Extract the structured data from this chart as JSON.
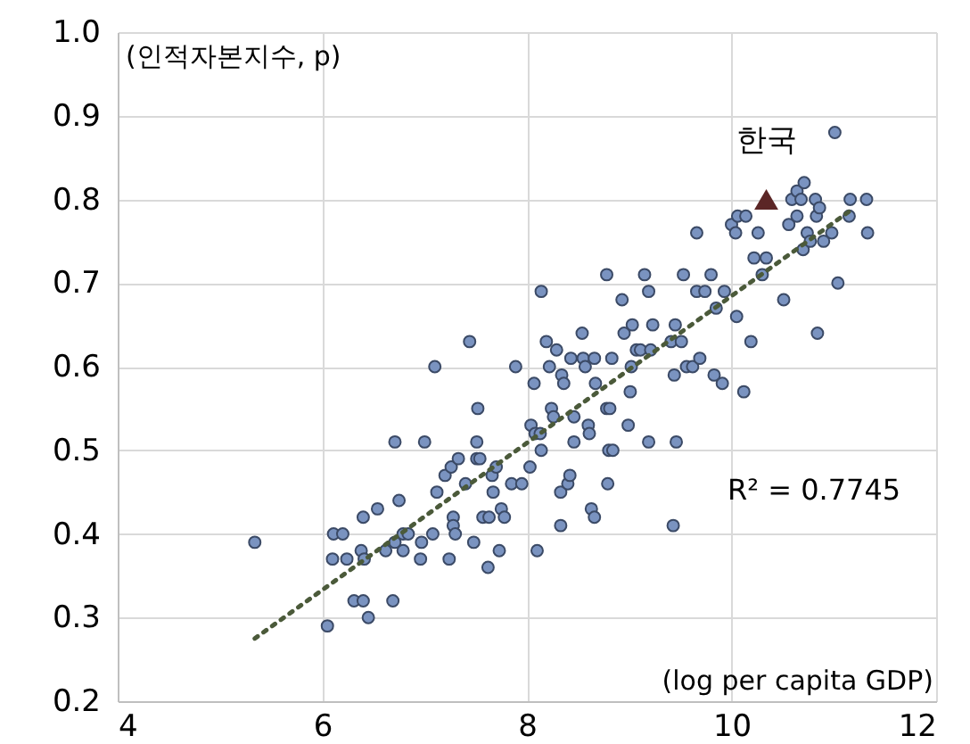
{
  "chart_data": {
    "type": "scatter",
    "xlabel": "(log per capita GDP)",
    "ylabel": "(인적자본지수, p)",
    "xlim": [
      4,
      12
    ],
    "xticks": [
      4,
      6,
      8,
      10,
      12
    ],
    "ylim": [
      0.2,
      1.0
    ],
    "yticks": [
      0.2,
      0.3,
      0.4,
      0.5,
      0.6,
      0.7,
      0.8,
      0.9,
      {
        "value": 1,
        "label": "1.0"
      }
    ],
    "grid": true,
    "annotations": [
      "R² = 0.7745"
    ],
    "series": [
      {
        "marker": "circle",
        "color": "#7a93c0",
        "x": [
          5.34,
          6.05,
          6.1,
          6.11,
          6.2,
          6.24,
          6.31,
          6.4,
          6.45,
          6.38,
          6.41,
          6.4,
          6.54,
          6.69,
          6.62,
          6.71,
          6.75,
          6.71,
          6.79,
          6.84,
          6.79,
          6.96,
          6.97,
          7.0,
          7.08,
          7.1,
          7.12,
          7.2,
          7.26,
          7.24,
          7.28,
          7.28,
          7.3,
          7.33,
          7.4,
          7.44,
          7.48,
          7.51,
          7.51,
          7.52,
          7.54,
          7.57,
          7.63,
          7.62,
          7.66,
          7.67,
          7.7,
          7.73,
          7.75,
          7.78,
          7.85,
          7.95,
          7.89,
          8.03,
          8.04,
          8.07,
          8.08,
          8.13,
          8.14,
          8.1,
          8.14,
          8.19,
          8.22,
          8.24,
          8.26,
          8.29,
          8.33,
          8.33,
          8.34,
          8.36,
          8.4,
          8.42,
          8.43,
          8.46,
          8.46,
          8.54,
          8.55,
          8.57,
          8.6,
          8.61,
          8.63,
          8.66,
          8.66,
          8.67,
          8.78,
          8.78,
          8.81,
          8.8,
          8.84,
          8.79,
          8.83,
          8.93,
          8.95,
          8.99,
          9.01,
          9.03,
          9.02,
          9.07,
          9.11,
          9.15,
          9.19,
          9.19,
          9.23,
          9.21,
          9.43,
          9.46,
          9.41,
          9.45,
          9.51,
          9.53,
          9.44,
          9.56,
          9.62,
          9.69,
          9.66,
          9.66,
          9.74,
          9.8,
          9.85,
          9.83,
          9.91,
          9.93,
          10.0,
          10.06,
          10.04,
          10.05,
          10.12,
          10.14,
          10.19,
          10.22,
          10.26,
          10.3,
          10.34,
          10.51,
          10.56,
          10.59,
          10.64,
          10.68,
          10.71,
          10.64,
          10.74,
          10.7,
          10.77,
          10.82,
          10.83,
          10.86,
          10.84,
          10.9,
          10.98,
          11.01,
          11.04,
          11.16,
          11.15,
          11.32,
          11.33
        ],
        "values": [
          0.39,
          0.29,
          0.37,
          0.4,
          0.4,
          0.37,
          0.32,
          0.32,
          0.3,
          0.38,
          0.37,
          0.42,
          0.43,
          0.32,
          0.38,
          0.39,
          0.44,
          0.51,
          0.4,
          0.4,
          0.38,
          0.37,
          0.39,
          0.51,
          0.4,
          0.6,
          0.45,
          0.47,
          0.48,
          0.37,
          0.42,
          0.41,
          0.4,
          0.49,
          0.46,
          0.63,
          0.39,
          0.49,
          0.51,
          0.55,
          0.49,
          0.42,
          0.42,
          0.36,
          0.47,
          0.45,
          0.48,
          0.38,
          0.43,
          0.42,
          0.46,
          0.46,
          0.6,
          0.48,
          0.53,
          0.58,
          0.52,
          0.52,
          0.5,
          0.38,
          0.69,
          0.63,
          0.6,
          0.55,
          0.54,
          0.62,
          0.45,
          0.41,
          0.59,
          0.58,
          0.46,
          0.47,
          0.61,
          0.51,
          0.54,
          0.64,
          0.61,
          0.6,
          0.53,
          0.52,
          0.43,
          0.42,
          0.61,
          0.58,
          0.71,
          0.55,
          0.55,
          0.5,
          0.5,
          0.46,
          0.61,
          0.68,
          0.64,
          0.53,
          0.57,
          0.65,
          0.6,
          0.62,
          0.62,
          0.71,
          0.69,
          0.51,
          0.65,
          0.62,
          0.41,
          0.51,
          0.63,
          0.65,
          0.63,
          0.71,
          0.59,
          0.6,
          0.6,
          0.61,
          0.76,
          0.69,
          0.69,
          0.71,
          0.67,
          0.59,
          0.58,
          0.69,
          0.77,
          0.78,
          0.76,
          0.66,
          0.57,
          0.78,
          0.63,
          0.73,
          0.76,
          0.71,
          0.73,
          0.68,
          0.77,
          0.8,
          0.81,
          0.8,
          0.82,
          0.78,
          0.76,
          0.74,
          0.75,
          0.8,
          0.78,
          0.79,
          0.64,
          0.75,
          0.76,
          0.88,
          0.7,
          0.8,
          0.78,
          0.8,
          0.76
        ]
      },
      {
        "type": "line",
        "marker": "none",
        "line_style": "dotted",
        "color": "#4b5a3a",
        "x": [
          5.34,
          11.2
        ],
        "values": [
          0.275,
          0.79
        ]
      },
      {
        "type": "scatter",
        "marker": "triangle",
        "name": "한국",
        "color": "#5b2626",
        "x": [
          10.34
        ],
        "values": [
          0.8
        ]
      }
    ]
  }
}
